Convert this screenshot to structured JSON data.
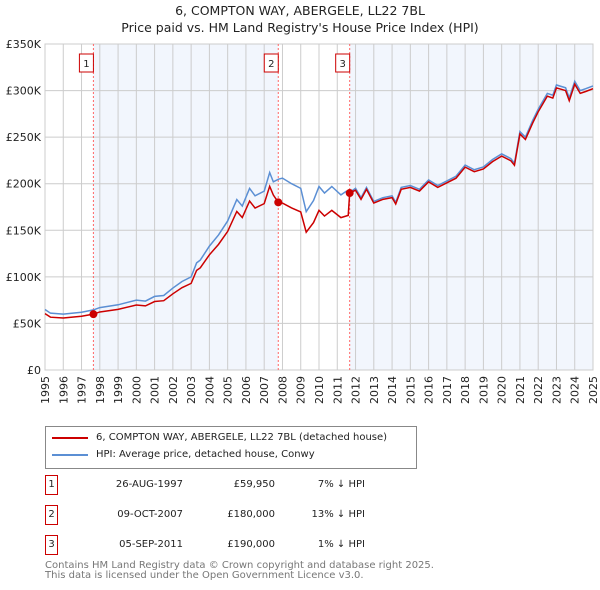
{
  "chart_data": {
    "type": "line",
    "title": "6, COMPTON WAY, ABERGELE, LL22 7BL",
    "subtitle": "Price paid vs. HM Land Registry's House Price Index (HPI)",
    "xlim": [
      1995,
      2025
    ],
    "ylim": [
      0,
      350000
    ],
    "x_ticks": [
      "1995",
      "1996",
      "1997",
      "1998",
      "1999",
      "2000",
      "2001",
      "2002",
      "2003",
      "2004",
      "2005",
      "2006",
      "2007",
      "2008",
      "2009",
      "2010",
      "2011",
      "2012",
      "2013",
      "2014",
      "2015",
      "2016",
      "2017",
      "2018",
      "2019",
      "2020",
      "2021",
      "2022",
      "2023",
      "2024",
      "2025"
    ],
    "y_ticks": [
      {
        "v": 0,
        "label": "£0"
      },
      {
        "v": 50000,
        "label": "£50K"
      },
      {
        "v": 100000,
        "label": "£100K"
      },
      {
        "v": 150000,
        "label": "£150K"
      },
      {
        "v": 200000,
        "label": "£200K"
      },
      {
        "v": 250000,
        "label": "£250K"
      },
      {
        "v": 300000,
        "label": "£300K"
      },
      {
        "v": 350000,
        "label": "£350K"
      }
    ],
    "grid": true,
    "series": [
      {
        "name": "HPI: Average price, detached house, Conwy",
        "color": "#5b8fd4",
        "points": [
          [
            1995.0,
            65000
          ],
          [
            1995.3,
            61000
          ],
          [
            1996,
            60000
          ],
          [
            1997,
            62000
          ],
          [
            1997.65,
            64500
          ],
          [
            1998,
            67000
          ],
          [
            1999,
            70000
          ],
          [
            2000,
            75000
          ],
          [
            2000.5,
            74000
          ],
          [
            2001,
            79000
          ],
          [
            2001.5,
            80000
          ],
          [
            2002,
            88000
          ],
          [
            2002.5,
            95000
          ],
          [
            2003,
            100000
          ],
          [
            2003.3,
            115000
          ],
          [
            2003.5,
            118000
          ],
          [
            2004,
            133000
          ],
          [
            2004.5,
            145000
          ],
          [
            2005,
            160000
          ],
          [
            2005.5,
            183000
          ],
          [
            2005.8,
            176000
          ],
          [
            2006.2,
            195000
          ],
          [
            2006.5,
            187000
          ],
          [
            2007,
            192000
          ],
          [
            2007.3,
            212000
          ],
          [
            2007.5,
            202000
          ],
          [
            2007.8,
            205000
          ],
          [
            2008,
            206000
          ],
          [
            2008.5,
            200000
          ],
          [
            2009,
            195000
          ],
          [
            2009.3,
            170000
          ],
          [
            2009.7,
            182000
          ],
          [
            2010,
            197000
          ],
          [
            2010.3,
            190000
          ],
          [
            2010.7,
            197000
          ],
          [
            2011.2,
            188000
          ],
          [
            2011.5,
            192000
          ],
          [
            2011.7,
            191000
          ],
          [
            2012,
            195000
          ],
          [
            2012.3,
            185000
          ],
          [
            2012.6,
            196000
          ],
          [
            2013,
            181000
          ],
          [
            2013.5,
            185000
          ],
          [
            2014,
            187000
          ],
          [
            2014.2,
            180000
          ],
          [
            2014.5,
            196000
          ],
          [
            2015,
            198000
          ],
          [
            2015.5,
            194000
          ],
          [
            2016,
            204000
          ],
          [
            2016.5,
            198000
          ],
          [
            2017,
            203000
          ],
          [
            2017.5,
            208000
          ],
          [
            2018,
            220000
          ],
          [
            2018.5,
            215000
          ],
          [
            2019,
            218000
          ],
          [
            2019.5,
            226000
          ],
          [
            2020,
            232000
          ],
          [
            2020.5,
            227000
          ],
          [
            2020.7,
            222000
          ],
          [
            2021,
            256000
          ],
          [
            2021.3,
            250000
          ],
          [
            2021.7,
            268000
          ],
          [
            2022,
            280000
          ],
          [
            2022.5,
            297000
          ],
          [
            2022.8,
            295000
          ],
          [
            2023,
            306000
          ],
          [
            2023.5,
            303000
          ],
          [
            2023.7,
            292000
          ],
          [
            2024,
            310000
          ],
          [
            2024.3,
            300000
          ],
          [
            2024.6,
            302000
          ],
          [
            2025,
            305000
          ]
        ]
      },
      {
        "name": "6, COMPTON WAY, ABERGELE, LL22 7BL (detached house)",
        "color": "#cc0000",
        "points": [
          [
            1995.0,
            60500
          ],
          [
            1995.3,
            56700
          ],
          [
            1996,
            55800
          ],
          [
            1997,
            57700
          ],
          [
            1997.65,
            59950
          ],
          [
            1998,
            62300
          ],
          [
            1999,
            65100
          ],
          [
            2000,
            69800
          ],
          [
            2000.5,
            68800
          ],
          [
            2001,
            73500
          ],
          [
            2001.5,
            74400
          ],
          [
            2002,
            81800
          ],
          [
            2002.5,
            88400
          ],
          [
            2003,
            93000
          ],
          [
            2003.3,
            107000
          ],
          [
            2003.5,
            109700
          ],
          [
            2004,
            123700
          ],
          [
            2004.5,
            134900
          ],
          [
            2005,
            148800
          ],
          [
            2005.5,
            170200
          ],
          [
            2005.8,
            163700
          ],
          [
            2006.2,
            181400
          ],
          [
            2006.5,
            173900
          ],
          [
            2007,
            178600
          ],
          [
            2007.3,
            197200
          ],
          [
            2007.5,
            187900
          ],
          [
            2007.77,
            180000
          ],
          [
            2008,
            179200
          ],
          [
            2008.5,
            174000
          ],
          [
            2009,
            169700
          ],
          [
            2009.3,
            147900
          ],
          [
            2009.7,
            158300
          ],
          [
            2010,
            171400
          ],
          [
            2010.3,
            165300
          ],
          [
            2010.7,
            171400
          ],
          [
            2011.2,
            163600
          ],
          [
            2011.6,
            166000
          ],
          [
            2011.68,
            190000
          ],
          [
            2012,
            193000
          ],
          [
            2012.3,
            183200
          ],
          [
            2012.6,
            194000
          ],
          [
            2013,
            179200
          ],
          [
            2013.5,
            183200
          ],
          [
            2014,
            185100
          ],
          [
            2014.2,
            178200
          ],
          [
            2014.5,
            194000
          ],
          [
            2015,
            196000
          ],
          [
            2015.5,
            192100
          ],
          [
            2016,
            202000
          ],
          [
            2016.5,
            196000
          ],
          [
            2017,
            201000
          ],
          [
            2017.5,
            205900
          ],
          [
            2018,
            217800
          ],
          [
            2018.5,
            212900
          ],
          [
            2019,
            215800
          ],
          [
            2019.5,
            223700
          ],
          [
            2020,
            229700
          ],
          [
            2020.5,
            224700
          ],
          [
            2020.7,
            219800
          ],
          [
            2021,
            253400
          ],
          [
            2021.3,
            247500
          ],
          [
            2021.7,
            265300
          ],
          [
            2022,
            277200
          ],
          [
            2022.5,
            294000
          ],
          [
            2022.8,
            292000
          ],
          [
            2023,
            302900
          ],
          [
            2023.5,
            300000
          ],
          [
            2023.7,
            289100
          ],
          [
            2024,
            306900
          ],
          [
            2024.3,
            297000
          ],
          [
            2024.6,
            299000
          ],
          [
            2025,
            302000
          ]
        ]
      }
    ],
    "sales": [
      {
        "n": "1",
        "x": 1997.65,
        "date": "26-AUG-1997",
        "value": 59950,
        "price": "£59,950",
        "hpi": "7% ↓ HPI"
      },
      {
        "n": "2",
        "x": 2007.77,
        "date": "09-OCT-2007",
        "value": 180000,
        "price": "£180,000",
        "hpi": "13% ↓ HPI"
      },
      {
        "n": "3",
        "x": 2011.68,
        "date": "05-SEP-2011",
        "value": 190000,
        "price": "£190,000",
        "hpi": "1% ↓ HPI"
      }
    ],
    "shaded_ranges": [
      [
        1997.65,
        2007.77
      ],
      [
        2011.68,
        2025
      ]
    ],
    "legend_position": "bottom"
  },
  "footer": {
    "line1": "Contains HM Land Registry data © Crown copyright and database right 2025.",
    "line2": "This data is licensed under the Open Government Licence v3.0."
  }
}
